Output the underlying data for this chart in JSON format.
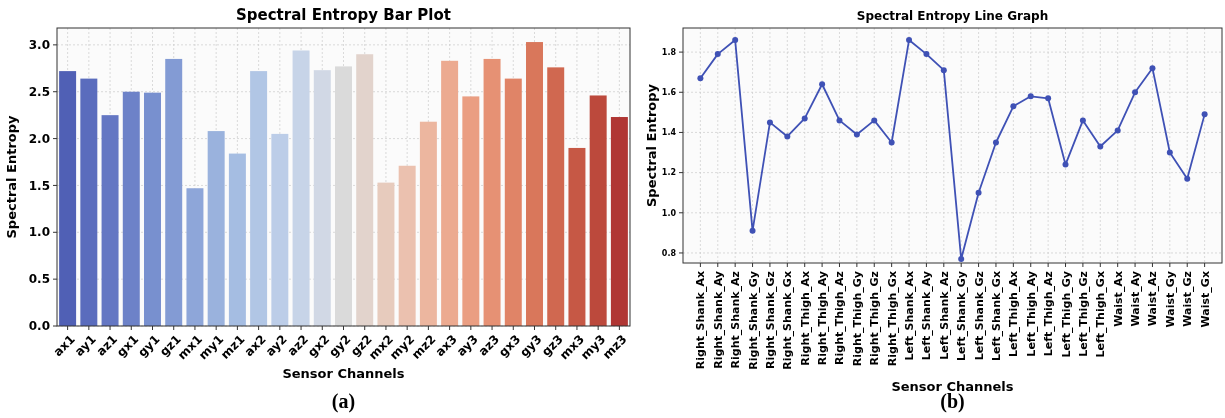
{
  "chart_data": [
    {
      "type": "bar",
      "title": "Spectral Entropy Bar Plot",
      "xlabel": "Sensor Channels",
      "ylabel": "Spectral Entropy",
      "annotations": [
        "(a)"
      ],
      "categories": [
        "ax1",
        "ay1",
        "az1",
        "gx1",
        "gy1",
        "gz1",
        "mx1",
        "my1",
        "mz1",
        "ax2",
        "ay2",
        "az2",
        "gx2",
        "gy2",
        "gz2",
        "mx2",
        "my2",
        "mz2",
        "ax3",
        "ay3",
        "az3",
        "gx3",
        "gy3",
        "gz3",
        "mx3",
        "my3",
        "mz3"
      ],
      "values": [
        2.72,
        2.64,
        2.25,
        2.5,
        2.49,
        2.85,
        1.47,
        2.08,
        1.84,
        2.72,
        2.05,
        2.94,
        2.73,
        2.77,
        2.9,
        1.53,
        1.71,
        2.18,
        2.83,
        2.45,
        2.85,
        2.64,
        3.03,
        2.76,
        1.9,
        2.46,
        2.23
      ],
      "colors": [
        "#5060b5",
        "#5a6cbd",
        "#6477c3",
        "#6d82c8",
        "#7890cf",
        "#839bd4",
        "#8ea6d9",
        "#9ab2dd",
        "#a5bde2",
        "#b1c6e5",
        "#bccde8",
        "#c7d4e8",
        "#d1d8e5",
        "#dadada",
        "#e2d3cc",
        "#e7cbbd",
        "#ebc1af",
        "#ecb69f",
        "#ecaa90",
        "#ea9e82",
        "#e69174",
        "#e08467",
        "#d9775b",
        "#d06850",
        "#c65845",
        "#bc493c",
        "#b03634"
      ],
      "ylim": [
        0,
        3.18
      ],
      "yticks": [
        {
          "value": 0,
          "label": "0.0"
        },
        {
          "value": 0.5,
          "label": "0.5"
        },
        {
          "value": 1,
          "label": "1.0"
        },
        {
          "value": 1.5,
          "label": "1.5"
        },
        {
          "value": 2,
          "label": "2.0"
        },
        {
          "value": 2.5,
          "label": "2.5"
        },
        {
          "value": 3,
          "label": "3.0"
        }
      ],
      "grid": true
    },
    {
      "type": "line",
      "title": "Spectral Entropy Line Graph",
      "xlabel": "Sensor Channels",
      "ylabel": "Spectral Entropy",
      "annotations": [
        "(b)"
      ],
      "categories": [
        "Right_Shank_Ax",
        "Right_Shank_Ay",
        "Right_Shank_Az",
        "Right_Shank_Gy",
        "Right_Shank_Gz",
        "Right_Shank_Gx",
        "Right_Thigh_Ax",
        "Right_Thigh_Ay",
        "Right_Thigh_Az",
        "Right_Thigh_Gy",
        "Right_Thigh_Gz",
        "Right_Thigh_Gx",
        "Left_Shank_Ax",
        "Left_Shank_Ay",
        "Left_Shank_Az",
        "Left_Shank_Gy",
        "Left_Shank_Gz",
        "Left_Shank_Gx",
        "Left_Thigh_Ax",
        "Left_Thigh_Ay",
        "Left_Thigh_Az",
        "Left_Thigh_Gy",
        "Left_Thigh_Gz",
        "Left_Thigh_Gx",
        "Waist_Ax",
        "Waist_Ay",
        "Waist_Az",
        "Waist_Gy",
        "Waist_Gz",
        "Waist_Gx"
      ],
      "series": [
        {
          "color": "#3f51b5",
          "values": [
            1.67,
            1.79,
            1.86,
            0.91,
            1.45,
            1.38,
            1.47,
            1.64,
            1.46,
            1.39,
            1.46,
            1.35,
            1.86,
            1.79,
            1.71,
            0.77,
            1.1,
            1.35,
            1.53,
            1.58,
            1.57,
            1.24,
            1.46,
            1.33,
            1.41,
            1.6,
            1.72,
            1.3,
            1.17,
            1.49
          ]
        }
      ],
      "ylim": [
        0.75,
        1.92
      ],
      "yticks": [
        {
          "value": 0.8,
          "label": "0.8"
        },
        {
          "value": 1,
          "label": "1.0"
        },
        {
          "value": 1.2,
          "label": "1.2"
        },
        {
          "value": 1.4,
          "label": "1.4"
        },
        {
          "value": 1.6,
          "label": "1.6"
        },
        {
          "value": 1.8,
          "label": "1.8"
        }
      ],
      "grid": true,
      "marker": "circle",
      "line_style": "solid"
    }
  ]
}
